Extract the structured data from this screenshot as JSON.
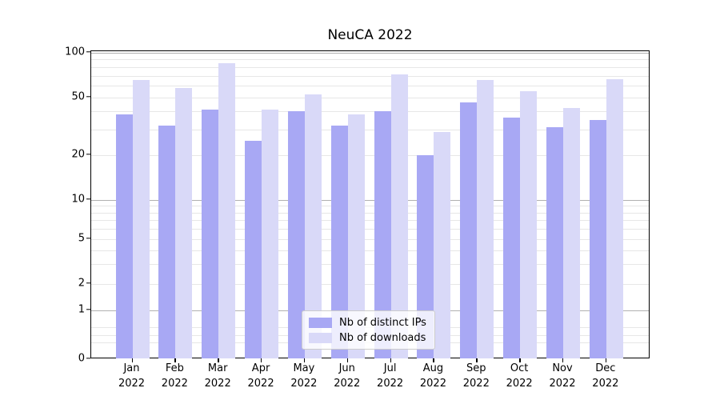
{
  "chart_data": {
    "type": "bar",
    "title": "NeuCA 2022",
    "categories": [
      "Jan 2022",
      "Feb 2022",
      "Mar 2022",
      "Apr 2022",
      "May 2022",
      "Jun 2022",
      "Jul 2022",
      "Aug 2022",
      "Sep 2022",
      "Oct 2022",
      "Nov 2022",
      "Dec 2022"
    ],
    "series": [
      {
        "name": "Nb of distinct IPs",
        "color": "#a8a8f4",
        "values": [
          38,
          32,
          41,
          25,
          40,
          32,
          40,
          20,
          46,
          36,
          31,
          35
        ]
      },
      {
        "name": "Nb of downloads",
        "color": "#d9d9f8",
        "values": [
          65,
          58,
          85,
          41,
          52,
          38,
          71,
          29,
          65,
          55,
          42,
          66
        ]
      }
    ],
    "yscale": "log (linear below 1, bottom at 0)",
    "ylim": [
      0,
      100
    ],
    "yticks": [
      0,
      1,
      2,
      5,
      10,
      20,
      50,
      100
    ],
    "grid": "on",
    "legend_position": "lower center"
  },
  "axes": {
    "x_months": [
      "Jan",
      "Feb",
      "Mar",
      "Apr",
      "May",
      "Jun",
      "Jul",
      "Aug",
      "Sep",
      "Oct",
      "Nov",
      "Dec"
    ],
    "x_year": "2022",
    "ytick_labels": [
      "100",
      "50",
      "20",
      "10",
      "5",
      "2",
      "1",
      "0"
    ],
    "major_grid_values": [
      100,
      10,
      1
    ],
    "minor_grid_values": [
      90,
      80,
      70,
      60,
      50,
      40,
      30,
      20,
      9,
      8,
      7,
      6,
      5,
      4,
      3,
      2,
      0.65,
      0.5,
      0.35
    ]
  },
  "colors": {
    "bar_distinct_ips": "#a8a8f4",
    "bar_downloads": "#d9d9f8",
    "major_grid": "#b0b0b0",
    "minor_grid": "#e7e7e7",
    "axis": "#000000",
    "legend_border": "#cccccc"
  }
}
